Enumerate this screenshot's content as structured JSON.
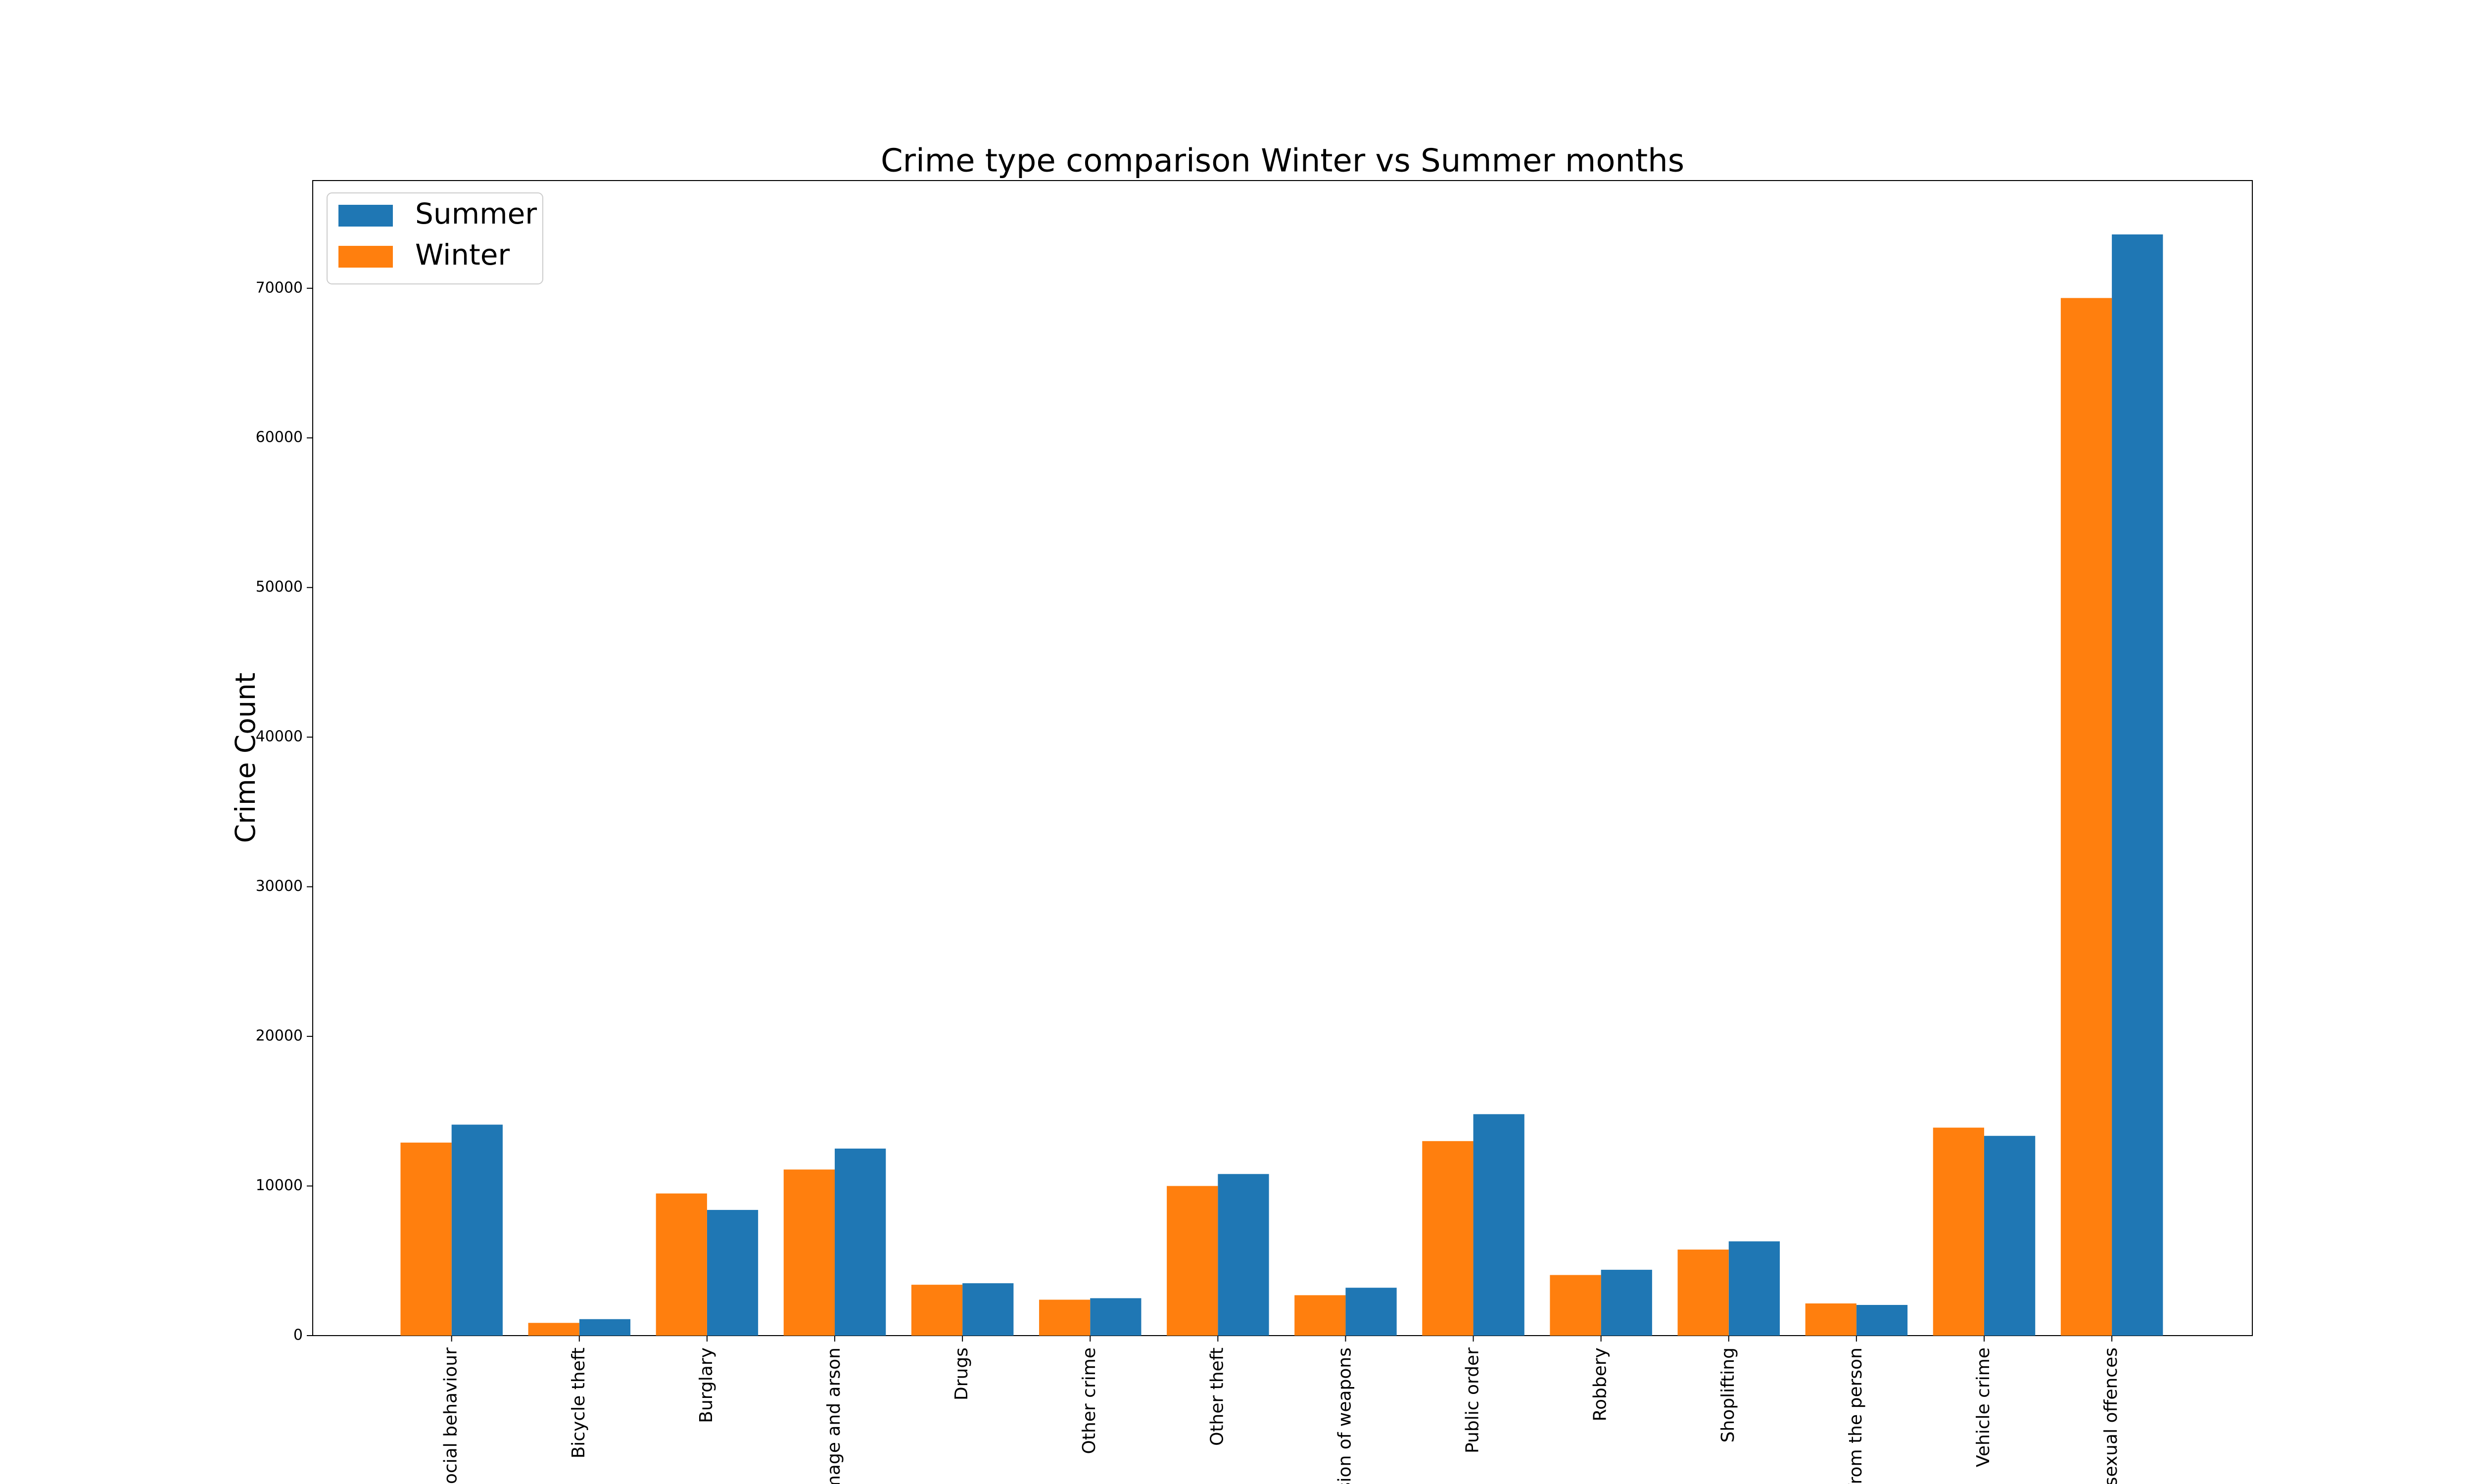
{
  "chart_data": {
    "type": "bar",
    "title": "Crime type comparison Winter vs Summer months",
    "y_label": "Crime Count",
    "categories": [
      "ti-social behaviour",
      "Bicycle theft",
      "Burglary",
      "damage and arson",
      "Drugs",
      "Other crime",
      "Other theft",
      "ession of weapons",
      "Public order",
      "Robbery",
      "Shoplifting",
      "ft from the person",
      "Vehicle crime",
      "nd sexual offences"
    ],
    "series": [
      {
        "name": "Summer",
        "color": "#1f77b4",
        "values": [
          14100,
          1100,
          8400,
          12500,
          3500,
          2500,
          10800,
          3200,
          14800,
          4400,
          6300,
          2050,
          13350,
          73600
        ]
      },
      {
        "name": "Winter",
        "color": "#ff7f0e",
        "values": [
          12900,
          850,
          9500,
          11100,
          3400,
          2400,
          10000,
          2700,
          13000,
          4050,
          5750,
          2150,
          13900,
          69350
        ]
      }
    ],
    "ylim": [
      0,
      77200
    ],
    "yticks": [
      0,
      10000,
      20000,
      30000,
      40000,
      50000,
      60000,
      70000
    ],
    "legend": "upper left"
  }
}
